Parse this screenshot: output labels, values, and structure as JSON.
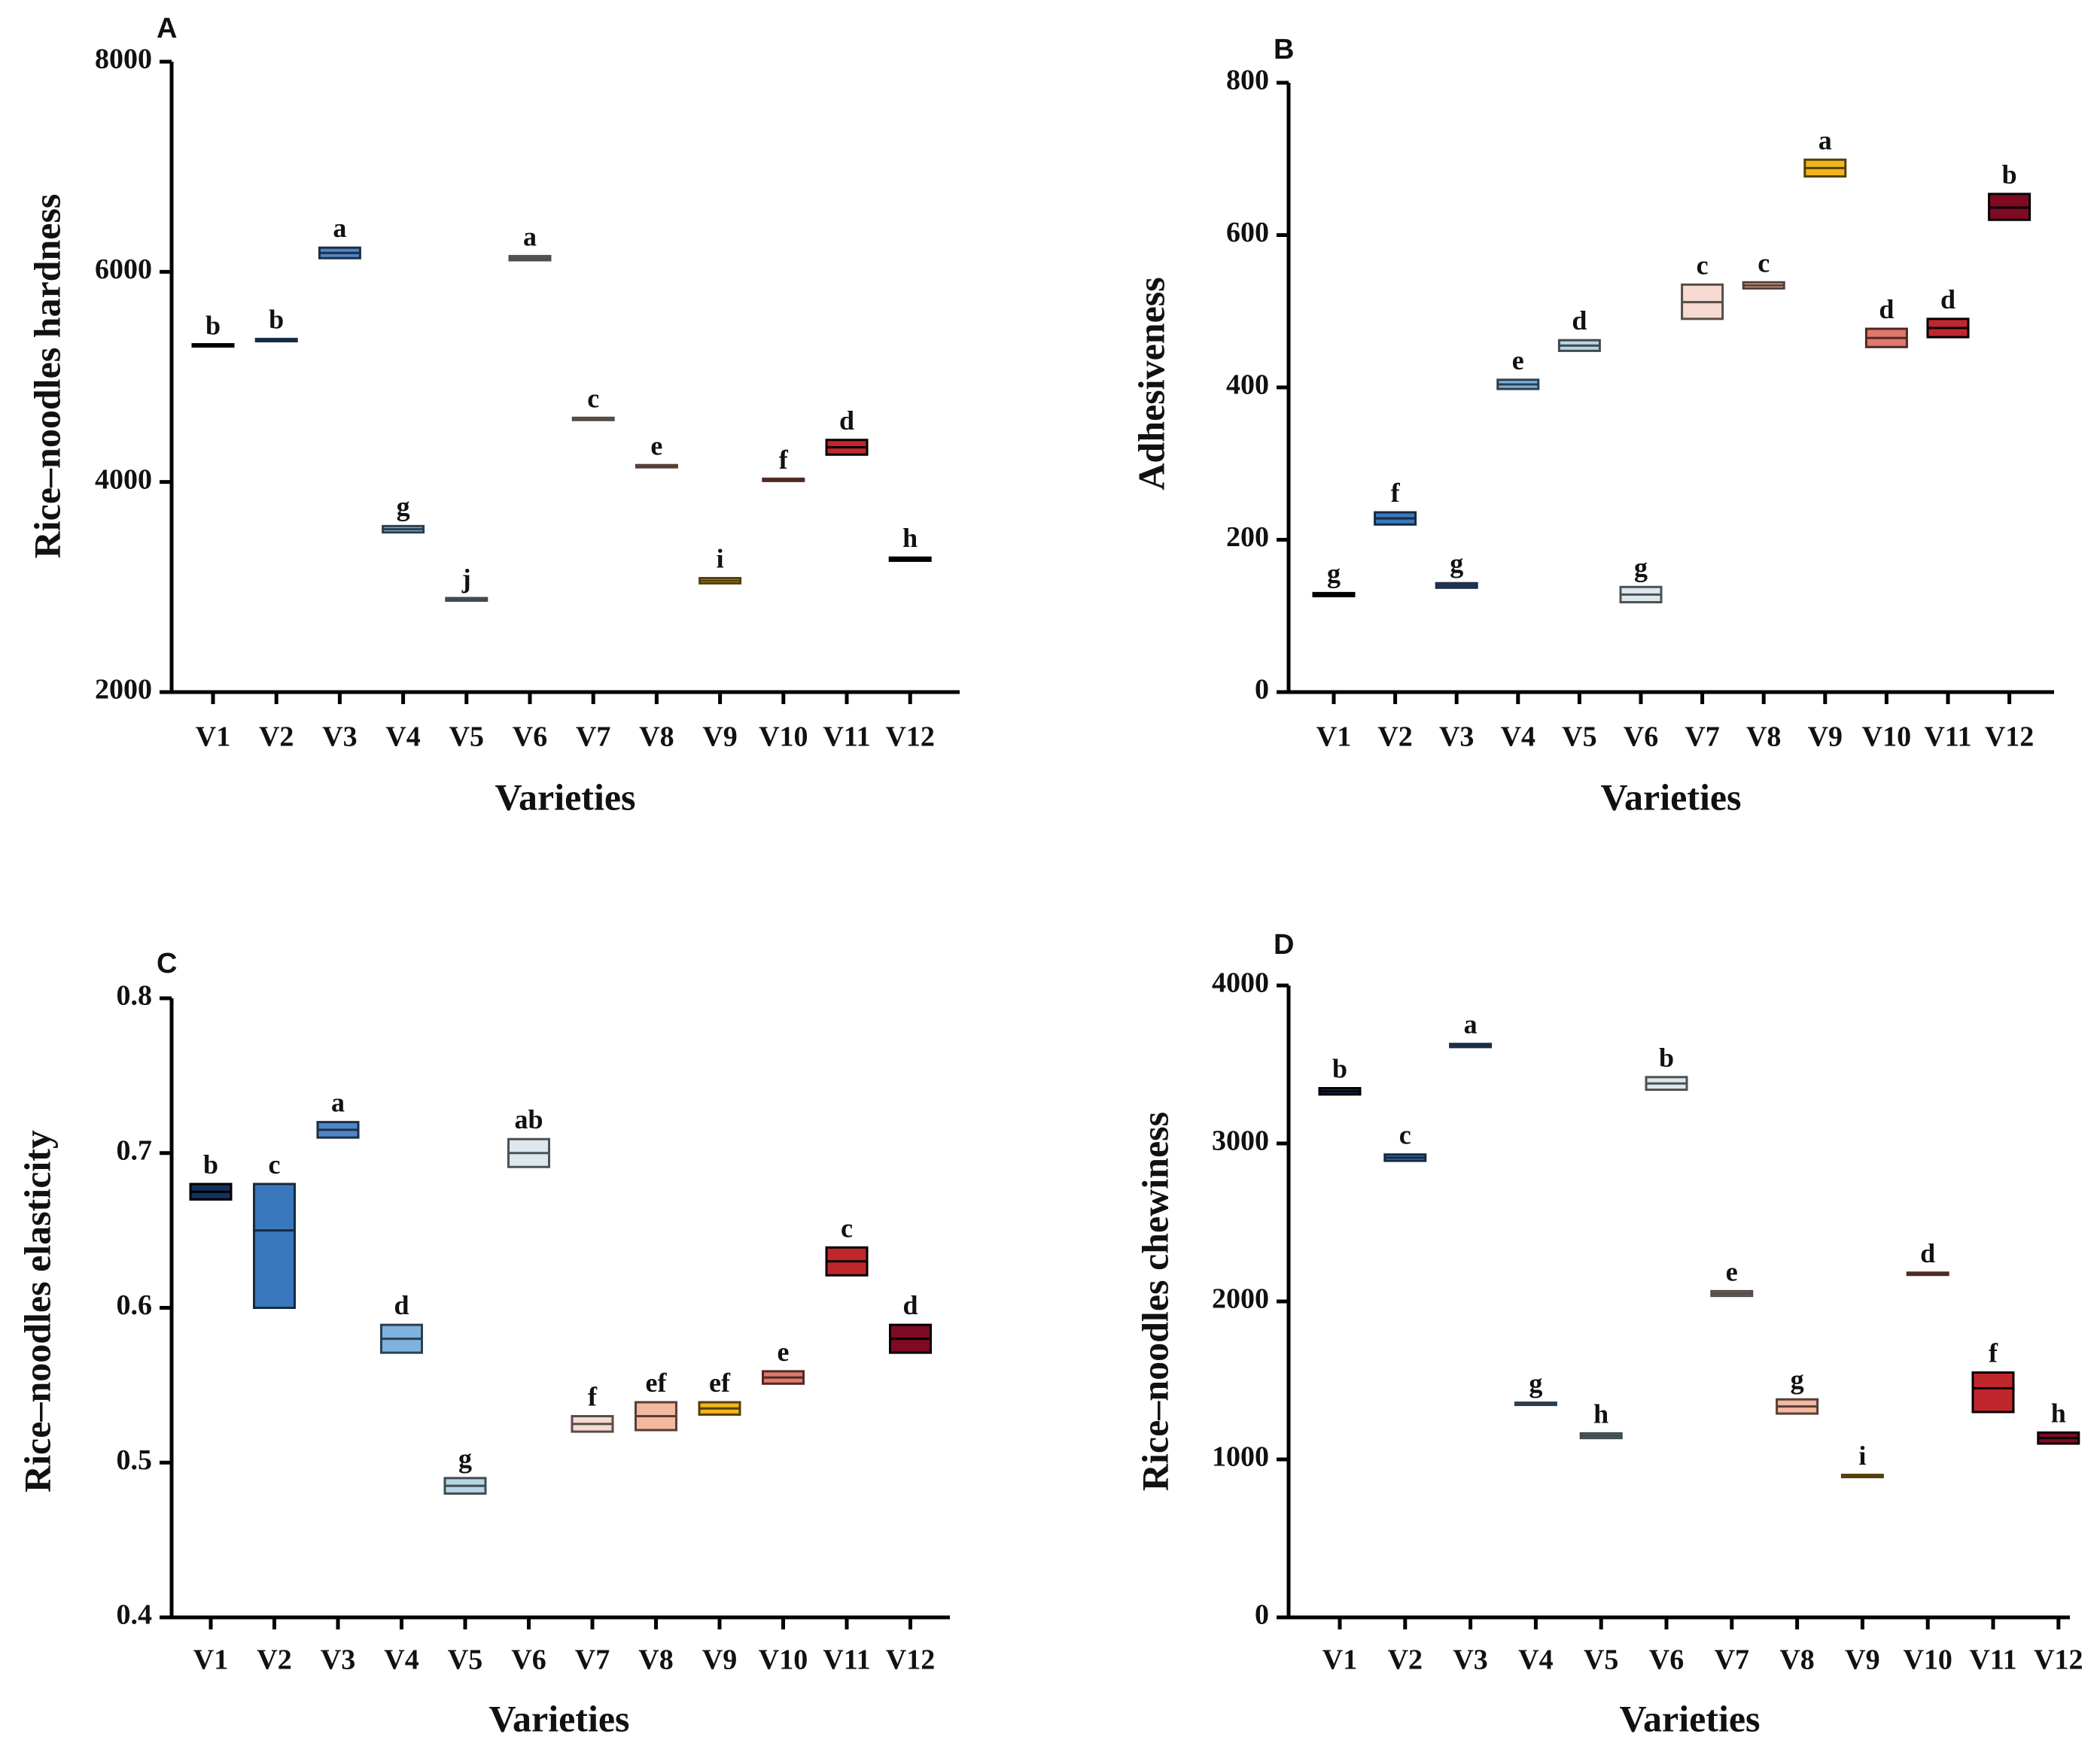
{
  "figure": {
    "xlabel": "Varieties"
  },
  "colors": {
    "V1": "#14305c",
    "V2": "#3a78bd",
    "V3": "#4f86c8",
    "V4": "#7fb3de",
    "V5": "#b7d5e5",
    "V6": "#dde7ee",
    "V7": "#f7dad1",
    "V8": "#f3b8a0",
    "V9": "#f1b61c",
    "V10": "#e2786d",
    "V11": "#c0272d",
    "V12": "#7f0a24"
  },
  "chart_data": [
    {
      "panel": "A",
      "type": "box",
      "ylabel": "Rice–noodles hardness",
      "ylim": [
        2000,
        8000
      ],
      "yticks": [
        2000,
        4000,
        6000,
        8000
      ],
      "categories": [
        "V1",
        "V2",
        "V3",
        "V4",
        "V5",
        "V6",
        "V7",
        "V8",
        "V9",
        "V10",
        "V11",
        "V12"
      ],
      "low": [
        5295,
        5340,
        6130,
        3520,
        2870,
        6110,
        4590,
        4140,
        3035,
        4015,
        4260,
        3250
      ],
      "mid": [
        5300,
        5350,
        6180,
        3550,
        2880,
        6130,
        4600,
        4150,
        3060,
        4020,
        4330,
        3265
      ],
      "high": [
        5305,
        5360,
        6230,
        3580,
        2895,
        6150,
        4610,
        4160,
        3085,
        4025,
        4400,
        3280
      ],
      "letters": [
        "b",
        "b",
        "a",
        "g",
        "j",
        "a",
        "c",
        "e",
        "i",
        "f",
        "d",
        "h"
      ]
    },
    {
      "panel": "B",
      "type": "box",
      "ylabel": "Adhesiveness",
      "ylim": [
        0,
        800
      ],
      "yticks": [
        0,
        200,
        400,
        600,
        800
      ],
      "categories": [
        "V1",
        "V2",
        "V3",
        "V4",
        "V5",
        "V6",
        "V7",
        "V8",
        "V9",
        "V10",
        "V11",
        "V12"
      ],
      "low": [
        126,
        220,
        137,
        398,
        448,
        118,
        490,
        530,
        677,
        453,
        466,
        620
      ],
      "mid": [
        128,
        228,
        140,
        404,
        455,
        128,
        512,
        534,
        688,
        465,
        478,
        636
      ],
      "high": [
        130,
        236,
        143,
        410,
        462,
        138,
        535,
        538,
        699,
        477,
        490,
        654
      ],
      "letters": [
        "g",
        "f",
        "g",
        "e",
        "d",
        "g",
        "c",
        "c",
        "a",
        "d",
        "d",
        "b"
      ]
    },
    {
      "panel": "C",
      "type": "box",
      "ylabel": "Rice–noodles  elasticity",
      "ylim": [
        0.4,
        0.8
      ],
      "yticks": [
        0.4,
        0.5,
        0.6,
        0.7,
        0.8
      ],
      "categories": [
        "V1",
        "V2",
        "V3",
        "V4",
        "V5",
        "V6",
        "V7",
        "V8",
        "V9",
        "V10",
        "V11",
        "V12"
      ],
      "low": [
        0.67,
        0.6,
        0.71,
        0.571,
        0.48,
        0.691,
        0.52,
        0.521,
        0.531,
        0.551,
        0.621,
        0.571
      ],
      "mid": [
        0.675,
        0.65,
        0.715,
        0.58,
        0.485,
        0.7,
        0.525,
        0.53,
        0.535,
        0.555,
        0.63,
        0.58
      ],
      "high": [
        0.68,
        0.68,
        0.72,
        0.589,
        0.49,
        0.709,
        0.53,
        0.539,
        0.539,
        0.559,
        0.639,
        0.589
      ],
      "letters": [
        "b",
        "c",
        "a",
        "d",
        "g",
        "ab",
        "f",
        "ef",
        "ef",
        "e",
        "c",
        "d"
      ]
    },
    {
      "panel": "D",
      "type": "box",
      "ylabel": "Rice–noodles  chewiness",
      "ylim": [
        0,
        4000
      ],
      "yticks": [
        0,
        1000,
        2000,
        3000,
        4000
      ],
      "categories": [
        "V1",
        "V2",
        "V3",
        "V4",
        "V5",
        "V6",
        "V7",
        "V8",
        "V9",
        "V10",
        "V11",
        "V12"
      ],
      "low": [
        3310,
        2890,
        3610,
        1348,
        1135,
        3340,
        2035,
        1290,
        890,
        2170,
        1300,
        1100
      ],
      "mid": [
        3330,
        2910,
        3620,
        1352,
        1150,
        3380,
        2050,
        1335,
        895,
        2175,
        1450,
        1135
      ],
      "high": [
        3350,
        2930,
        3630,
        1356,
        1165,
        3420,
        2065,
        1380,
        900,
        2180,
        1550,
        1170
      ],
      "letters": [
        "b",
        "c",
        "a",
        "g",
        "h",
        "b",
        "e",
        "g",
        "i",
        "d",
        "f",
        "h"
      ]
    }
  ]
}
